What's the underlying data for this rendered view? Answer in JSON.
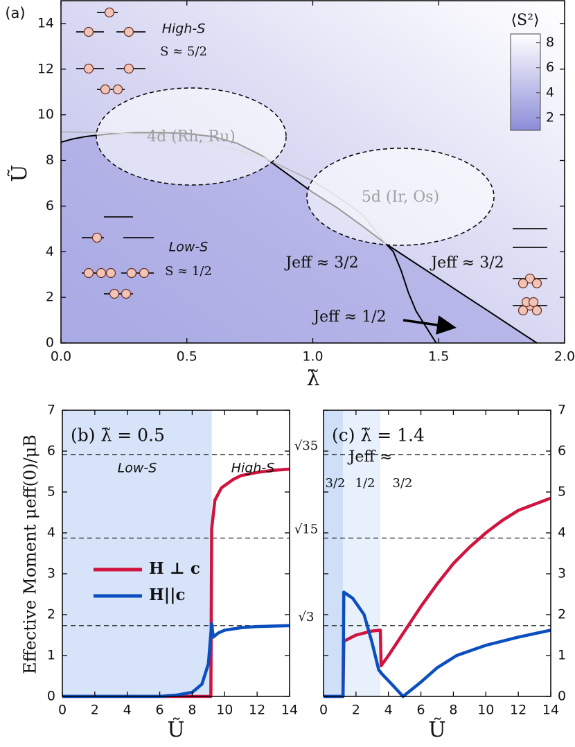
{
  "chart_data": [
    {
      "type": "line",
      "panel": "(a)",
      "xlabel": "λ̃",
      "ylabel": "Ũ",
      "xlim": [
        0,
        2
      ],
      "ylim": [
        0,
        15
      ],
      "xticks": [
        {
          "value": 0,
          "label": "0.0"
        },
        {
          "value": 0.5,
          "label": "0.5"
        },
        {
          "value": 1,
          "label": "1.0"
        },
        {
          "value": 1.5,
          "label": "1.5"
        },
        {
          "value": 2,
          "label": "2.0"
        }
      ],
      "yticks": [
        0,
        2,
        4,
        6,
        8,
        10,
        12,
        14
      ],
      "series": [
        {
          "color": "#000000",
          "x": [
            0,
            0.05,
            0.1,
            0.2,
            0.3,
            0.4,
            0.5,
            0.6,
            0.7,
            0.8,
            0.9,
            1.0,
            1.1,
            1.2,
            1.29,
            1.4,
            1.5,
            1.6,
            1.7,
            1.8,
            1.89
          ],
          "values": [
            8.8,
            8.95,
            9.05,
            9.17,
            9.22,
            9.22,
            9.18,
            9.05,
            8.75,
            8.2,
            7.4,
            6.6,
            5.9,
            5.1,
            4.35,
            3.55,
            2.83,
            2.1,
            1.38,
            0.65,
            0
          ]
        },
        {
          "color": "#aaaaaa",
          "x": [
            0,
            0.2,
            0.4,
            0.6,
            0.8,
            1.0,
            1.1,
            1.2,
            1.29
          ],
          "values": [
            9.25,
            9.22,
            9.1,
            8.75,
            8.15,
            7.1,
            6.4,
            5.6,
            4.35
          ]
        },
        {
          "color": "#000000",
          "x": [
            1.29,
            1.32,
            1.35,
            1.38,
            1.41,
            1.45,
            1.49
          ],
          "values": [
            4.35,
            4.0,
            3.2,
            2.2,
            1.4,
            0.7,
            0
          ]
        }
      ],
      "annotations": [
        "High-S",
        "S ≈ 5/2",
        "Low-S",
        "S ≈ 1/2",
        "4d (Rh, Ru)",
        "5d (Ir, Os)",
        "Jeff ≈ 3/2",
        "Jeff ≈ 3/2",
        "Jeff ≈ 1/2"
      ],
      "colorbar": {
        "label": "⟨S²⟩",
        "lim": [
          1,
          8.7
        ],
        "ticks": [
          2,
          4,
          6,
          8
        ],
        "colors": [
          "#8c8cd9",
          "#ffffff"
        ]
      }
    },
    {
      "type": "line",
      "title": "(b) λ̃ = 0.5",
      "xlabel": "Ũ",
      "ylabel": "Effective Moment μeff(0)/μB",
      "xlim": [
        0,
        14
      ],
      "ylim": [
        0,
        7
      ],
      "xticks": [
        0,
        2,
        4,
        6,
        8,
        10,
        12,
        14
      ],
      "yticks": [
        0,
        1,
        2,
        3,
        4,
        5,
        6,
        7
      ],
      "hlines": [
        5.916,
        3.873,
        1.732
      ],
      "bands": [
        {
          "xlim": [
            0,
            9.2
          ],
          "color": "#d6e3f8"
        }
      ],
      "annotations": [
        "Low-S",
        "High-S"
      ],
      "legend": "center-left",
      "series": [
        {
          "name": "H ⊥ c",
          "color": "#d0143f",
          "x": [
            0,
            4,
            8,
            9.15,
            9.2,
            9.4,
            9.8,
            10.5,
            11,
            12,
            13,
            14
          ],
          "values": [
            0,
            0,
            0,
            0,
            4.1,
            4.8,
            5.1,
            5.3,
            5.4,
            5.48,
            5.53,
            5.56
          ]
        },
        {
          "name": "H||c",
          "color": "#0b4fbf",
          "x": [
            0,
            6,
            7,
            8,
            8.6,
            9.0,
            9.1,
            9.2,
            9.3,
            9.6,
            10,
            11,
            12,
            14
          ],
          "values": [
            0,
            0,
            0.03,
            0.1,
            0.3,
            0.8,
            1.3,
            1.78,
            1.45,
            1.55,
            1.62,
            1.68,
            1.71,
            1.73
          ]
        }
      ]
    },
    {
      "type": "line",
      "title": "(c) λ̃ = 1.4",
      "xlabel": "Ũ",
      "yaxis_side": "right",
      "xlim": [
        0,
        14
      ],
      "ylim": [
        0,
        7
      ],
      "xticks": [
        0,
        2,
        4,
        6,
        8,
        10,
        12,
        14
      ],
      "yticks": [
        0,
        1,
        2,
        3,
        4,
        5,
        6,
        7
      ],
      "hlines": [
        {
          "value": 5.916,
          "label": "√35"
        },
        {
          "value": 3.873,
          "label": "√15"
        },
        {
          "value": 1.732,
          "label": "√3"
        }
      ],
      "bands": [
        {
          "xlim": [
            0,
            1.2
          ],
          "color": "#cfdff8"
        },
        {
          "xlim": [
            1.2,
            3.5
          ],
          "color": "#e8f0fc"
        }
      ],
      "annotations": [
        "Jeff ≈",
        "3/2",
        "1/2",
        "3/2"
      ],
      "series": [
        {
          "color": "#d0143f",
          "x": [
            0,
            1.2,
            1.25,
            2,
            3,
            3.5,
            3.55,
            4,
            5,
            6,
            7,
            8,
            9,
            10,
            11,
            12,
            13,
            14
          ],
          "values": [
            0,
            0,
            1.35,
            1.5,
            1.6,
            1.62,
            0.75,
            1.0,
            1.6,
            2.2,
            2.75,
            3.25,
            3.65,
            4.0,
            4.3,
            4.55,
            4.7,
            4.85
          ]
        },
        {
          "color": "#0b4fbf",
          "x": [
            0,
            1.2,
            1.25,
            1.8,
            2.5,
            3.0,
            3.4,
            3.6,
            4.2,
            4.9,
            6,
            7,
            8.2,
            10,
            12,
            14
          ],
          "values": [
            0,
            0,
            2.55,
            2.4,
            2.0,
            1.3,
            0.65,
            0.55,
            0.3,
            0,
            0.35,
            0.7,
            1.0,
            1.25,
            1.45,
            1.62
          ]
        }
      ]
    }
  ]
}
